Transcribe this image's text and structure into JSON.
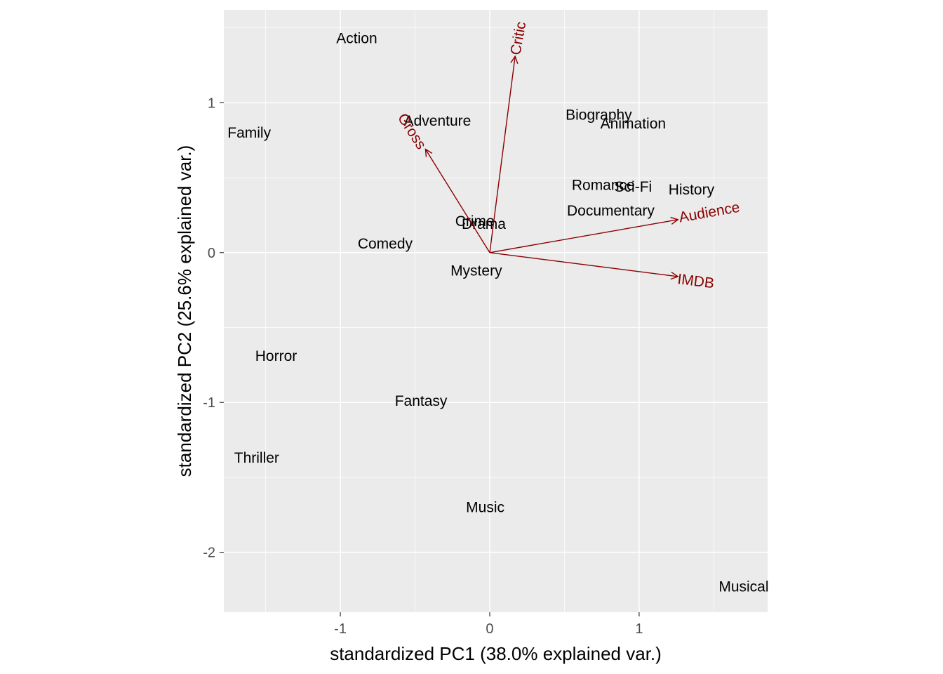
{
  "chart_data": {
    "type": "scatter",
    "subtype": "pca-biplot",
    "xlabel": "standardized PC1 (38.0% explained var.)",
    "ylabel": "standardized PC2 (25.6% explained var.)",
    "xlim": [
      -1.78,
      1.86
    ],
    "ylim": [
      -2.4,
      1.62
    ],
    "xticks": [
      -1,
      0,
      1
    ],
    "yticks": [
      -2,
      -1,
      0,
      1
    ],
    "xtick_labels": [
      "-1",
      "0",
      "1"
    ],
    "ytick_labels": [
      "-2",
      "-1",
      "0",
      "1"
    ],
    "grid": true,
    "points": [
      {
        "label": "Action",
        "x": -0.89,
        "y": 1.43
      },
      {
        "label": "Adventure",
        "x": -0.35,
        "y": 0.88
      },
      {
        "label": "Family",
        "x": -1.61,
        "y": 0.8
      },
      {
        "label": "Biography",
        "x": 0.73,
        "y": 0.92
      },
      {
        "label": "Animation",
        "x": 0.96,
        "y": 0.86
      },
      {
        "label": "Romance",
        "x": 0.76,
        "y": 0.45
      },
      {
        "label": "Sci-Fi",
        "x": 0.96,
        "y": 0.44
      },
      {
        "label": "History",
        "x": 1.35,
        "y": 0.42
      },
      {
        "label": "Documentary",
        "x": 0.81,
        "y": 0.28
      },
      {
        "label": "Crime",
        "x": -0.1,
        "y": 0.21
      },
      {
        "label": "Drama",
        "x": -0.04,
        "y": 0.19
      },
      {
        "label": "Comedy",
        "x": -0.7,
        "y": 0.06
      },
      {
        "label": "Mystery",
        "x": -0.09,
        "y": -0.12
      },
      {
        "label": "Horror",
        "x": -1.43,
        "y": -0.69
      },
      {
        "label": "Fantasy",
        "x": -0.46,
        "y": -0.99
      },
      {
        "label": "Thriller",
        "x": -1.56,
        "y": -1.37
      },
      {
        "label": "Music",
        "x": -0.03,
        "y": -1.7
      },
      {
        "label": "Musical",
        "x": 1.7,
        "y": -2.23
      }
    ],
    "loadings": [
      {
        "name": "Critic",
        "x": 0.17,
        "y": 1.31,
        "label_x": 0.19,
        "label_y": 1.43,
        "label_angle": -80
      },
      {
        "name": "Gross",
        "x": -0.43,
        "y": 0.69,
        "label_x": -0.52,
        "label_y": 0.81,
        "label_angle": 57
      },
      {
        "name": "Audience",
        "x": 1.26,
        "y": 0.22,
        "label_x": 1.47,
        "label_y": 0.27,
        "label_angle": -10
      },
      {
        "name": "IMDB",
        "x": 1.26,
        "y": -0.16,
        "label_x": 1.38,
        "label_y": -0.19,
        "label_angle": 7
      }
    ],
    "colors": {
      "panel_bg": "#ebebeb",
      "grid_major": "#ffffff",
      "arrow": "#8b0000",
      "text": "#000000",
      "tick_text": "#4d4d4d"
    }
  }
}
